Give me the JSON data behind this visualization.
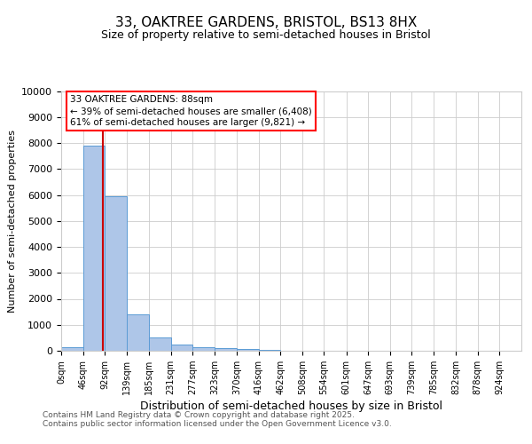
{
  "title": "33, OAKTREE GARDENS, BRISTOL, BS13 8HX",
  "subtitle": "Size of property relative to semi-detached houses in Bristol",
  "xlabel": "Distribution of semi-detached houses by size in Bristol",
  "ylabel": "Number of semi-detached properties",
  "bin_edges": [
    0,
    46,
    92,
    139,
    185,
    231,
    277,
    323,
    370,
    416,
    462,
    508,
    554,
    601,
    647,
    693,
    739,
    785,
    832,
    878,
    924
  ],
  "bar_heights": [
    150,
    7900,
    5950,
    1400,
    500,
    250,
    120,
    100,
    60,
    20,
    10,
    5,
    3,
    2,
    1,
    1,
    0,
    0,
    0,
    0
  ],
  "bar_color": "#aec6e8",
  "bar_edgecolor": "#5b9bd5",
  "property_size": 88,
  "red_line_color": "#cc0000",
  "annotation_line1": "33 OAKTREE GARDENS: 88sqm",
  "annotation_line2": "← 39% of semi-detached houses are smaller (6,408)",
  "annotation_line3": "61% of semi-detached houses are larger (9,821) →",
  "ylim": [
    0,
    10000
  ],
  "yticks": [
    0,
    1000,
    2000,
    3000,
    4000,
    5000,
    6000,
    7000,
    8000,
    9000,
    10000
  ],
  "footer_line1": "Contains HM Land Registry data © Crown copyright and database right 2025.",
  "footer_line2": "Contains public sector information licensed under the Open Government Licence v3.0.",
  "background_color": "#ffffff",
  "grid_color": "#cccccc",
  "title_fontsize": 11,
  "subtitle_fontsize": 9
}
